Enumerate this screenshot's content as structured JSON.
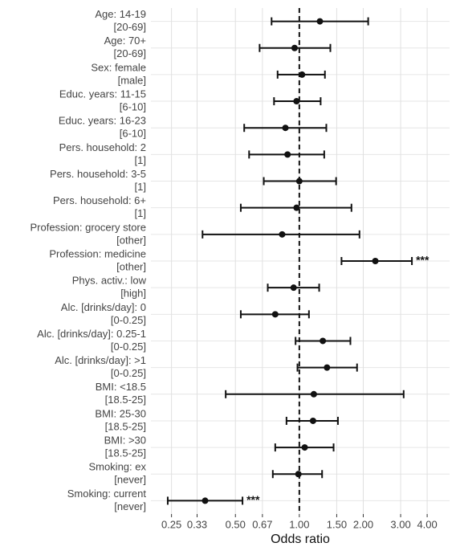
{
  "chart_data": {
    "type": "forest",
    "x_label": "Odds ratio",
    "log_x": true,
    "grid": true,
    "ref_line": 1,
    "color": "#111111",
    "categories": [
      "Age: 14-19",
      "Age: 70+",
      "Sex: female",
      "Educ. years: 11-15",
      "Educ. years: 16-23",
      "Pers. household: 2",
      "Pers. household: 3-5",
      "Pers. household: 6+",
      "Profession: grocery store",
      "Profession: medicine",
      "Phys. activ.: low",
      "Alc. [drinks/day]: 0",
      "Alc. [drinks/day]: 0.25-1",
      "Alc. [drinks/day]: >1",
      "BMI: <18.5",
      "BMI: 25-30",
      "BMI: >30",
      "Smoking: ex",
      "Smoking: current"
    ],
    "reference": [
      "[20-69]",
      "[20-69]",
      "[male]",
      "[6-10]",
      "[6-10]",
      "[1]",
      "[1]",
      "[1]",
      "[other]",
      "[other]",
      "[high]",
      "[0-0.25]",
      "[0-0.25]",
      "[0-0.25]",
      "[18.5-25]",
      "[18.5-25]",
      "[18.5-25]",
      "[never]",
      "[never]"
    ],
    "values": [
      1.25,
      0.95,
      1.03,
      0.97,
      0.86,
      0.88,
      1.0,
      0.97,
      0.83,
      2.28,
      0.94,
      0.77,
      1.29,
      1.35,
      1.17,
      1.16,
      1.06,
      0.99,
      0.36
    ],
    "ci_low": [
      0.74,
      0.65,
      0.79,
      0.76,
      0.55,
      0.58,
      0.68,
      0.53,
      0.35,
      1.58,
      0.71,
      0.53,
      0.96,
      0.98,
      0.45,
      0.87,
      0.77,
      0.75,
      0.24
    ],
    "ci_high": [
      2.11,
      1.4,
      1.32,
      1.26,
      1.34,
      1.31,
      1.49,
      1.76,
      1.92,
      3.39,
      1.24,
      1.11,
      1.74,
      1.87,
      3.1,
      1.52,
      1.45,
      1.28,
      0.54
    ],
    "significance": [
      null,
      null,
      null,
      null,
      null,
      null,
      null,
      null,
      null,
      "***",
      null,
      null,
      null,
      null,
      null,
      null,
      null,
      null,
      "***"
    ],
    "xlim": [
      0.2,
      5.1
    ],
    "xticks": [
      0.25,
      0.33,
      {
        "value": 0.5,
        "label": "0.50"
      },
      0.67,
      {
        "value": 1,
        "label": "1.00"
      },
      {
        "value": 1.5,
        "label": "1.50"
      },
      {
        "value": 2,
        "label": "2.00"
      },
      {
        "value": 3,
        "label": "3.00"
      },
      {
        "value": 4,
        "label": "4.00"
      }
    ]
  }
}
